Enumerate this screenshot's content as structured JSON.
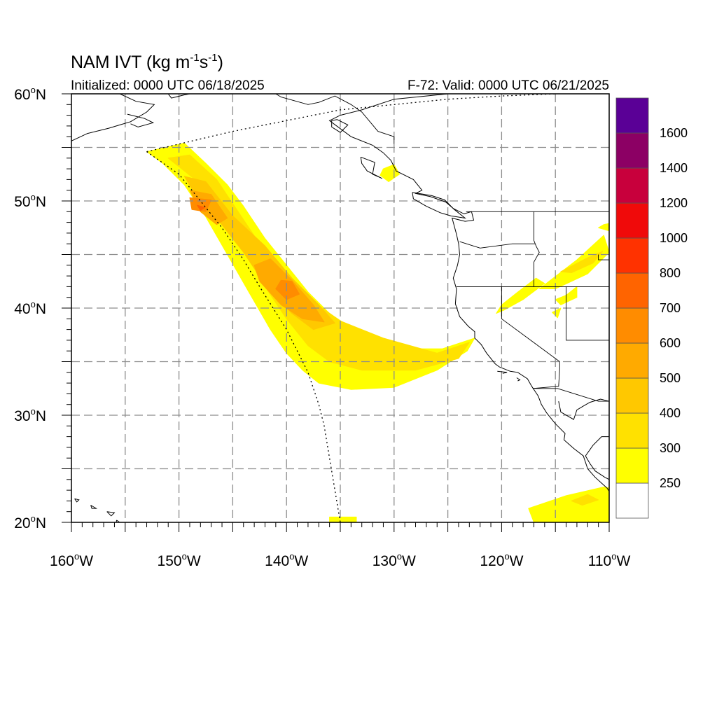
{
  "header": {
    "title_main": "NAM IVT (kg m",
    "title_sup1": "-1",
    "title_mid": "s",
    "title_sup2": "-1",
    "title_end": ")",
    "init_label": "Initialized: 0000 UTC 06/18/2025",
    "valid_label": "F-72: Valid: 0000 UTC 06/21/2025"
  },
  "map": {
    "lon_range": [
      -160,
      -110
    ],
    "lat_range": [
      20,
      60
    ],
    "lon_ticks": [
      {
        "value": -160,
        "num": "160",
        "hemi": "W"
      },
      {
        "value": -150,
        "num": "150",
        "hemi": "W"
      },
      {
        "value": -140,
        "num": "140",
        "hemi": "W"
      },
      {
        "value": -130,
        "num": "130",
        "hemi": "W"
      },
      {
        "value": -120,
        "num": "120",
        "hemi": "W"
      },
      {
        "value": -110,
        "num": "110",
        "hemi": "W"
      }
    ],
    "lat_ticks": [
      {
        "value": 60,
        "num": "60",
        "hemi": "N"
      },
      {
        "value": 50,
        "num": "50",
        "hemi": "N"
      },
      {
        "value": 40,
        "num": "40",
        "hemi": "N"
      },
      {
        "value": 30,
        "num": "30",
        "hemi": "N"
      },
      {
        "value": 20,
        "num": "20",
        "hemi": "N"
      }
    ],
    "grid_lon": [
      -155,
      -150,
      -145,
      -140,
      -135,
      -130,
      -125,
      -120,
      -115
    ],
    "grid_lat": [
      25,
      30,
      35,
      40,
      45,
      50,
      55
    ],
    "grid_style": "dashed gray"
  },
  "colorbar": {
    "labels": [
      "250",
      "300",
      "400",
      "500",
      "600",
      "700",
      "800",
      "1000",
      "1200",
      "1400",
      "1600"
    ],
    "colors": [
      "#ffffff",
      "#ffff00",
      "#ffe100",
      "#ffc800",
      "#ffaa00",
      "#ff8c00",
      "#ff6400",
      "#ff3200",
      "#f00a0a",
      "#c8003c",
      "#8c0064",
      "#5a0096"
    ]
  },
  "ivt_bands": [
    {
      "level": 250,
      "color": "#ffff00",
      "areas": [
        [
          [
            -153,
            54.6
          ],
          [
            -149.5,
            55.4
          ],
          [
            -147.5,
            53.5
          ],
          [
            -145.5,
            51.5
          ],
          [
            -144,
            49.5
          ],
          [
            -142,
            46.5
          ],
          [
            -140,
            44
          ],
          [
            -138,
            41.5
          ],
          [
            -136,
            39.5
          ],
          [
            -133,
            37.5
          ],
          [
            -129,
            36.2
          ],
          [
            -125.5,
            36.2
          ],
          [
            -122.5,
            37.2
          ],
          [
            -123.2,
            36
          ],
          [
            -126,
            34.2
          ],
          [
            -130,
            32.6
          ],
          [
            -134,
            32.4
          ],
          [
            -137,
            33
          ],
          [
            -138.5,
            34.2
          ],
          [
            -140,
            35.8
          ],
          [
            -141.5,
            38
          ],
          [
            -143.5,
            41.5
          ],
          [
            -145.5,
            45
          ],
          [
            -147.5,
            48.5
          ],
          [
            -149.5,
            51.5
          ],
          [
            -151.5,
            53.5
          ]
        ],
        [
          [
            -131,
            53
          ],
          [
            -130,
            53.4
          ],
          [
            -129.5,
            52.5
          ],
          [
            -130.5,
            51.8
          ],
          [
            -131.3,
            52.4
          ]
        ],
        [
          [
            -116.5,
            41.8
          ],
          [
            -113,
            44.5
          ],
          [
            -110.5,
            46.8
          ],
          [
            -110,
            45.2
          ],
          [
            -112,
            43.2
          ],
          [
            -115,
            41.8
          ]
        ],
        [
          [
            -110.5,
            47.8
          ],
          [
            -111,
            47.5
          ],
          [
            -110,
            47.2
          ],
          [
            -110,
            47.9
          ]
        ],
        [
          [
            -115,
            40.8
          ],
          [
            -114,
            41.2
          ],
          [
            -113,
            42
          ],
          [
            -113,
            41
          ],
          [
            -114.5,
            40.3
          ]
        ],
        [
          [
            -119.8,
            39.8
          ],
          [
            -118,
            40.8
          ],
          [
            -116,
            42.3
          ],
          [
            -116.8,
            42.8
          ],
          [
            -118.5,
            41.5
          ],
          [
            -120,
            40.3
          ],
          [
            -120.5,
            39.5
          ]
        ],
        [
          [
            -115.3,
            39.6
          ],
          [
            -114.5,
            40
          ],
          [
            -114.8,
            39.1
          ]
        ],
        [
          [
            -136,
            20.5
          ],
          [
            -133.5,
            20.5
          ],
          [
            -133.5,
            20
          ],
          [
            -136,
            20
          ]
        ],
        [
          [
            -117.5,
            21.3
          ],
          [
            -114,
            22.5
          ],
          [
            -110.5,
            23.3
          ],
          [
            -110,
            23.2
          ],
          [
            -110,
            20
          ],
          [
            -117,
            20
          ]
        ]
      ]
    },
    {
      "level": 300,
      "color": "#ffe100",
      "areas": [
        [
          [
            -151,
            54
          ],
          [
            -149,
            54.3
          ],
          [
            -146.5,
            52
          ],
          [
            -144.5,
            49
          ],
          [
            -142.5,
            46
          ],
          [
            -140,
            43.2
          ],
          [
            -137.5,
            40.6
          ],
          [
            -135,
            38.8
          ],
          [
            -131,
            37.2
          ],
          [
            -126,
            35.8
          ],
          [
            -123,
            36.8
          ],
          [
            -124,
            35.3
          ],
          [
            -128,
            34.2
          ],
          [
            -133,
            34.2
          ],
          [
            -136,
            35
          ],
          [
            -138,
            36.5
          ],
          [
            -140,
            39
          ],
          [
            -142,
            42
          ],
          [
            -144,
            45.5
          ],
          [
            -146,
            49
          ],
          [
            -148.5,
            52
          ]
        ],
        [
          [
            -114.5,
            43.4
          ],
          [
            -112,
            44.7
          ],
          [
            -110.6,
            45.3
          ],
          [
            -111.5,
            44.2
          ],
          [
            -113.5,
            43.3
          ]
        ],
        [
          [
            -113.5,
            22
          ],
          [
            -112,
            22.6
          ],
          [
            -111,
            22.1
          ],
          [
            -112.5,
            21.6
          ]
        ]
      ]
    },
    {
      "level": 400,
      "color": "#ffc800",
      "areas": [
        [
          [
            -149.5,
            52.3
          ],
          [
            -147.5,
            51.8
          ],
          [
            -145,
            48.6
          ],
          [
            -142,
            45.8
          ],
          [
            -139.5,
            42.8
          ],
          [
            -137,
            40.3
          ],
          [
            -135.5,
            38.6
          ],
          [
            -137.5,
            38
          ],
          [
            -139.5,
            39.5
          ],
          [
            -142,
            42.2
          ],
          [
            -144,
            45.2
          ],
          [
            -146.5,
            48.4
          ],
          [
            -148.5,
            50.6
          ]
        ]
      ]
    },
    {
      "level": 500,
      "color": "#ffaa00",
      "areas": [
        [
          [
            -149,
            51
          ],
          [
            -147,
            50.6
          ],
          [
            -145.5,
            48.4
          ],
          [
            -146.5,
            47.8
          ],
          [
            -148,
            49
          ]
        ],
        [
          [
            -143,
            44
          ],
          [
            -141.5,
            44.6
          ],
          [
            -139.5,
            42.6
          ],
          [
            -137.5,
            40.3
          ],
          [
            -136.5,
            38.7
          ],
          [
            -138.5,
            39
          ],
          [
            -140.5,
            40.3
          ],
          [
            -142.5,
            42.5
          ]
        ]
      ]
    },
    {
      "level": 600,
      "color": "#ff8c00",
      "areas": [
        [
          [
            -149,
            50.3
          ],
          [
            -147,
            50.1
          ],
          [
            -147.5,
            49
          ],
          [
            -148.8,
            49.2
          ]
        ],
        [
          [
            -140.5,
            42.6
          ],
          [
            -139.5,
            42.5
          ],
          [
            -138.8,
            41.3
          ],
          [
            -140,
            40.8
          ],
          [
            -141,
            41.8
          ]
        ]
      ]
    },
    {
      "level": 700,
      "color": "#ff6400",
      "areas": [
        [
          [
            -148.3,
            49.6
          ],
          [
            -147.6,
            49.4
          ],
          [
            -148,
            49.1
          ]
        ]
      ]
    }
  ],
  "domain_boundary": [
    [
      -153,
      54.6
    ],
    [
      -150,
      52.5
    ],
    [
      -148,
      50
    ],
    [
      -146,
      47.5
    ],
    [
      -144,
      44.5
    ],
    [
      -142.5,
      42
    ],
    [
      -140,
      38
    ],
    [
      -138,
      34
    ],
    [
      -137,
      31
    ],
    [
      -136.5,
      29
    ],
    [
      -136,
      26
    ],
    [
      -135.5,
      23
    ],
    [
      -135,
      20
    ],
    null,
    [
      -153,
      54.6
    ],
    [
      -145,
      56.5
    ],
    [
      -135,
      58.5
    ],
    [
      -125,
      59.5
    ],
    [
      -120,
      59.8
    ],
    [
      -115,
      60
    ]
  ],
  "coastlines": [
    [
      [
        -114.5,
        60
      ],
      [
        -125,
        60
      ],
      [
        -130,
        59.5
      ],
      [
        -133,
        58.5
      ],
      [
        -135,
        58
      ],
      [
        -136,
        57.5
      ],
      [
        -134,
        56
      ],
      [
        -132,
        55.2
      ],
      [
        -131,
        54.5
      ],
      [
        -130.3,
        53.8
      ],
      [
        -129.8,
        52.8
      ],
      [
        -128.2,
        52
      ],
      [
        -127.4,
        51
      ],
      [
        -128,
        50.7
      ],
      [
        -126.6,
        50.4
      ],
      [
        -125.2,
        49.9
      ],
      [
        -124.5,
        49.3
      ],
      [
        -123.5,
        48.8
      ],
      [
        -122.8,
        49
      ],
      [
        -122.6,
        48.2
      ],
      [
        -123.4,
        48.1
      ],
      [
        -124.6,
        48.4
      ],
      [
        -124.2,
        46.9
      ],
      [
        -124,
        46
      ],
      [
        -123.9,
        45
      ],
      [
        -124.1,
        44
      ],
      [
        -124.5,
        42.8
      ],
      [
        -124.2,
        41.8
      ],
      [
        -124.3,
        40.4
      ],
      [
        -123.9,
        39.2
      ],
      [
        -123.1,
        38.3
      ],
      [
        -122.5,
        37.8
      ],
      [
        -122.5,
        37.2
      ],
      [
        -121.9,
        36.6
      ],
      [
        -121.4,
        35.8
      ],
      [
        -120.6,
        34.8
      ],
      [
        -120.2,
        34.5
      ],
      [
        -119.2,
        34.1
      ],
      [
        -118.5,
        34
      ],
      [
        -117.6,
        33.4
      ],
      [
        -117.2,
        32.7
      ],
      [
        -116.6,
        31.8
      ],
      [
        -116.3,
        31
      ],
      [
        -115.8,
        30.2
      ],
      [
        -115,
        29.2
      ],
      [
        -114.1,
        28.3
      ],
      [
        -114.2,
        27.7
      ],
      [
        -113.3,
        26.9
      ],
      [
        -112.4,
        26.2
      ],
      [
        -112,
        25
      ],
      [
        -111.3,
        24.2
      ],
      [
        -110.2,
        23.2
      ],
      [
        -110,
        22.9
      ]
    ],
    [
      [
        -110,
        31.3
      ],
      [
        -110.8,
        31.5
      ],
      [
        -111.8,
        31.2
      ],
      [
        -112.5,
        30.8
      ],
      [
        -113,
        30.5
      ],
      [
        -113.3,
        29.6
      ],
      [
        -114.5,
        30.3
      ],
      [
        -114.7,
        31.3
      ]
    ],
    [
      [
        -110,
        28
      ],
      [
        -110.7,
        28
      ],
      [
        -111.5,
        27.2
      ],
      [
        -112.2,
        26.2
      ],
      [
        -111.8,
        25.5
      ],
      [
        -111.3,
        24.8
      ],
      [
        -110.4,
        24.2
      ],
      [
        -110,
        24
      ]
    ],
    [
      [
        -155.5,
        60
      ],
      [
        -154,
        59.3
      ],
      [
        -152.3,
        59
      ],
      [
        -153,
        58.3
      ],
      [
        -154.5,
        57.4
      ],
      [
        -155.5,
        57.1
      ],
      [
        -156.5,
        56.8
      ],
      [
        -158.5,
        56.3
      ],
      [
        -160,
        55.6
      ]
    ],
    [
      [
        -151,
        60
      ],
      [
        -150.7,
        59.6
      ],
      [
        -149.5,
        59.9
      ],
      [
        -149,
        60
      ]
    ],
    [
      [
        -154.8,
        58.1
      ],
      [
        -153.2,
        57.7
      ],
      [
        -152.4,
        57.3
      ],
      [
        -153.8,
        56.9
      ],
      [
        -154.5,
        57.2
      ]
    ],
    [
      [
        -135.3,
        57.6
      ],
      [
        -134.3,
        57.1
      ],
      [
        -135,
        56.4
      ],
      [
        -135.8,
        56.9
      ],
      [
        -135.8,
        57.5
      ],
      [
        -135.3,
        57.6
      ]
    ],
    [
      [
        -133.1,
        54.1
      ],
      [
        -131.8,
        53.6
      ],
      [
        -132,
        52.5
      ],
      [
        -131.1,
        52.1
      ],
      [
        -132.5,
        52.8
      ],
      [
        -133,
        53.5
      ],
      [
        -133.1,
        54.1
      ]
    ],
    [
      [
        -128.3,
        50.8
      ],
      [
        -126.5,
        50.5
      ],
      [
        -125.3,
        50.1
      ],
      [
        -124.4,
        49.2
      ],
      [
        -123.4,
        48.4
      ],
      [
        -124.7,
        48.6
      ],
      [
        -125.7,
        48.9
      ],
      [
        -127,
        49.5
      ],
      [
        -128.2,
        50.2
      ],
      [
        -128.3,
        50.8
      ]
    ],
    [
      [
        -120.4,
        34.1
      ],
      [
        -119.5,
        34
      ],
      [
        -119.9,
        33.9
      ]
    ],
    [
      [
        -118.6,
        33.5
      ],
      [
        -118.3,
        33.3
      ],
      [
        -118.5,
        33.2
      ]
    ],
    [
      [
        -155.8,
        20.2
      ],
      [
        -155.1,
        19.7
      ],
      [
        -154.8,
        19.5
      ],
      [
        -155.7,
        18.9
      ],
      [
        -155.9,
        19.5
      ],
      [
        -155.8,
        20.2
      ]
    ],
    [
      [
        -156.7,
        21
      ],
      [
        -156,
        20.9
      ],
      [
        -156.3,
        20.6
      ],
      [
        -156.7,
        21
      ]
    ],
    [
      [
        -158.2,
        21.6
      ],
      [
        -157.7,
        21.3
      ],
      [
        -158.1,
        21.3
      ],
      [
        -158.2,
        21.6
      ]
    ],
    [
      [
        -159.7,
        22.2
      ],
      [
        -159.3,
        22.1
      ],
      [
        -159.5,
        21.9
      ],
      [
        -159.7,
        22.2
      ]
    ]
  ],
  "borders": [
    [
      [
        -141,
        60
      ],
      [
        -140.5,
        59.7
      ],
      [
        -138,
        59
      ],
      [
        -137,
        59.2
      ],
      [
        -135.5,
        59.8
      ],
      [
        -134,
        59
      ],
      [
        -133,
        58.3
      ],
      [
        -131.5,
        56.5
      ],
      [
        -130,
        56
      ],
      [
        -130,
        55.3
      ]
    ],
    [
      [
        -123.3,
        49
      ],
      [
        -110,
        49
      ]
    ],
    [
      [
        -124.2,
        42
      ],
      [
        -110,
        42
      ]
    ],
    [
      [
        -120,
        42
      ],
      [
        -120,
        39
      ],
      [
        -114.6,
        35
      ],
      [
        -114.6,
        34.3
      ],
      [
        -114.7,
        32.7
      ],
      [
        -117.1,
        32.5
      ]
    ],
    [
      [
        -117.1,
        32.5
      ],
      [
        -114.8,
        32.5
      ],
      [
        -111,
        31.3
      ],
      [
        -110,
        31.3
      ]
    ],
    [
      [
        -117,
        49
      ],
      [
        -117,
        46.3
      ],
      [
        -116.8,
        45.8
      ],
      [
        -116.5,
        45.2
      ],
      [
        -117,
        44.3
      ],
      [
        -117,
        42
      ]
    ],
    [
      [
        -123.9,
        46.2
      ],
      [
        -122,
        45.6
      ],
      [
        -119,
        46
      ],
      [
        -116.9,
        46
      ]
    ],
    [
      [
        -114,
        42
      ],
      [
        -114,
        37
      ],
      [
        -110,
        37
      ]
    ],
    [
      [
        -111,
        45
      ],
      [
        -111,
        44.5
      ],
      [
        -110,
        44.5
      ]
    ]
  ]
}
